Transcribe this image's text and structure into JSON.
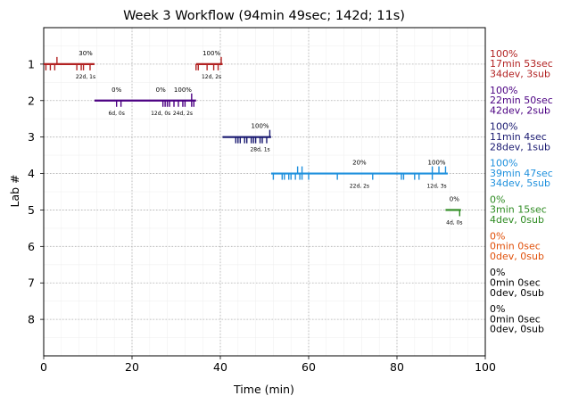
{
  "chart_data": {
    "type": "timeline",
    "title": "Week 3 Workflow (94min 49sec; 142d; 11s)",
    "xlabel": "Time (min)",
    "ylabel": "Lab #",
    "xlim": [
      0,
      100
    ],
    "ylim": [
      0,
      9
    ],
    "x_ticks": [
      0,
      20,
      40,
      60,
      80,
      100
    ],
    "y_ticks": [
      1,
      2,
      3,
      4,
      5,
      6,
      7,
      8
    ],
    "grid": true,
    "labs": [
      {
        "lab": 1,
        "color": "#b22222",
        "summary": [
          "100%",
          "17min 53sec",
          "34dev, 3sub"
        ],
        "segments": [
          [
            0,
            11.5
          ],
          [
            34.5,
            40.5
          ]
        ],
        "ticks_down": [
          0.5,
          1.5,
          2.5,
          7.5,
          8.5,
          9,
          10.5,
          34.5,
          35,
          37,
          38.5,
          39.5
        ],
        "ticks_up": [
          3,
          40.2
        ],
        "annotations": [
          {
            "x": 9.5,
            "pct": "30%",
            "info": "22d, 1s"
          },
          {
            "x": 38,
            "pct": "100%",
            "info": "12d, 2s"
          }
        ]
      },
      {
        "lab": 2,
        "color": "#4b0082",
        "summary": [
          "100%",
          "22min 50sec",
          "42dev, 2sub"
        ],
        "segments": [
          [
            11.5,
            34.5
          ]
        ],
        "ticks_down": [
          16.5,
          17.5,
          27,
          27.5,
          28,
          28.5,
          29.5,
          30.5,
          31.5,
          32,
          33.5,
          34
        ],
        "ticks_up": [
          33.5
        ],
        "annotations": [
          {
            "x": 16.5,
            "pct": "0%",
            "info": "6d, 0s"
          },
          {
            "x": 26.5,
            "pct": "0%",
            "info": "12d, 0s"
          },
          {
            "x": 31.5,
            "pct": "100%",
            "info": "24d, 2s"
          }
        ]
      },
      {
        "lab": 3,
        "color": "#191970",
        "summary": [
          "100%",
          "11min 4sec",
          "28dev, 1sub"
        ],
        "segments": [
          [
            40.5,
            51.5
          ]
        ],
        "ticks_down": [
          43.5,
          44,
          44.5,
          45.5,
          46,
          47,
          47.5,
          48,
          49,
          49.5,
          50.5
        ],
        "ticks_up": [
          51.2
        ],
        "annotations": [
          {
            "x": 49,
            "pct": "100%",
            "info": "28d, 1s"
          }
        ]
      },
      {
        "lab": 4,
        "color": "#1e90dd",
        "summary": [
          "100%",
          "39min 47sec",
          "34dev, 5sub"
        ],
        "segments": [
          [
            51.5,
            91.5
          ]
        ],
        "ticks_down": [
          52,
          54,
          54.5,
          55.5,
          56,
          57,
          58,
          58.5,
          60,
          66.5,
          74.5,
          81,
          81.5,
          84,
          85,
          88
        ],
        "ticks_up": [
          57.5,
          58.5,
          88,
          89.5,
          91
        ],
        "annotations": [
          {
            "x": 71.5,
            "pct": "20%",
            "info": "22d, 2s"
          },
          {
            "x": 89,
            "pct": "100%",
            "info": "12d, 3s"
          }
        ]
      },
      {
        "lab": 5,
        "color": "#2e8b22",
        "summary": [
          "0%",
          "3min 15sec",
          "4dev, 0sub"
        ],
        "segments": [
          [
            91,
            94.5
          ]
        ],
        "ticks_down": [
          94.2
        ],
        "ticks_up": [],
        "annotations": [
          {
            "x": 93,
            "pct": "0%",
            "info": "4d, 0s"
          }
        ]
      },
      {
        "lab": 6,
        "color": "#e0500a",
        "summary": [
          "0%",
          "0min 0sec",
          "0dev, 0sub"
        ],
        "segments": [],
        "ticks_down": [],
        "ticks_up": [],
        "annotations": []
      },
      {
        "lab": 7,
        "color": "#000000",
        "summary": [
          "0%",
          "0min 0sec",
          "0dev, 0sub"
        ],
        "segments": [],
        "ticks_down": [],
        "ticks_up": [],
        "annotations": []
      },
      {
        "lab": 8,
        "color": "#000000",
        "summary": [
          "0%",
          "0min 0sec",
          "0dev, 0sub"
        ],
        "segments": [],
        "ticks_down": [],
        "ticks_up": [],
        "annotations": []
      }
    ]
  }
}
